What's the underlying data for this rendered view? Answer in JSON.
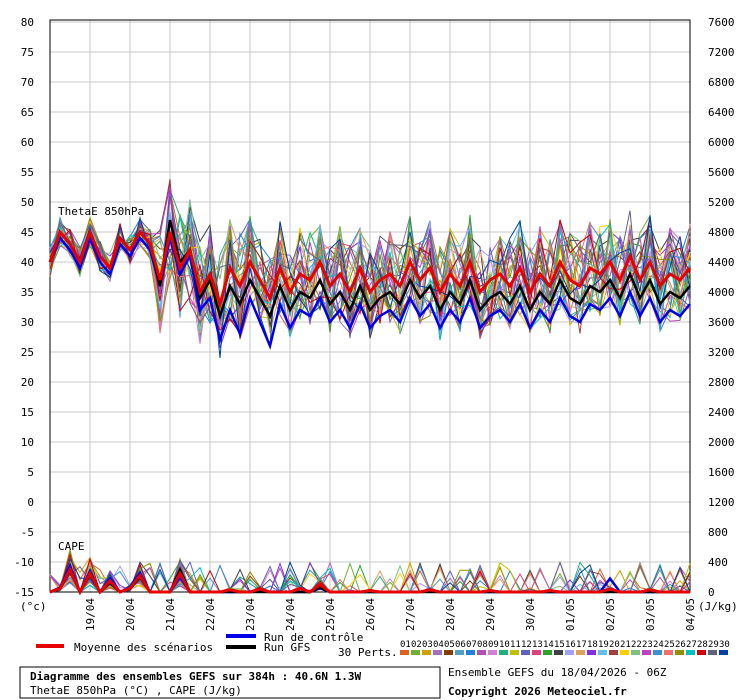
{
  "chart_data": {
    "type": "line",
    "panel_labels": {
      "theta": "ThetaE 850hPa",
      "cape": "CAPE"
    },
    "left_axis": {
      "unit": "(°c)",
      "ylim": [
        -15,
        80
      ],
      "ticks": [
        80,
        75,
        70,
        65,
        60,
        55,
        50,
        45,
        40,
        35,
        30,
        25,
        20,
        15,
        10,
        5,
        0,
        -5,
        -10,
        -15
      ]
    },
    "right_axis": {
      "unit": "(J/kg)",
      "ticks": [
        7600,
        7200,
        6800,
        6400,
        6000,
        5600,
        5200,
        4800,
        4400,
        4000,
        3600,
        3200,
        2800,
        2400,
        2000,
        1600,
        1200,
        800,
        400,
        0
      ]
    },
    "x_dates": [
      "19/04",
      "20/04",
      "21/04",
      "22/04",
      "23/04",
      "24/04",
      "25/04",
      "26/04",
      "27/04",
      "28/04",
      "29/04",
      "30/04",
      "01/05",
      "02/05",
      "03/05",
      "04/05"
    ],
    "theta_mean": [
      40,
      45,
      43,
      40,
      45,
      41,
      39,
      44,
      42,
      45,
      43,
      37,
      45,
      39,
      42,
      35,
      38,
      33,
      39,
      36,
      40,
      37,
      34,
      39,
      35,
      38,
      37,
      40,
      36,
      38,
      35,
      39,
      35,
      37,
      38,
      36,
      40,
      37,
      39,
      35,
      38,
      36,
      40,
      35,
      37,
      38,
      36,
      39,
      35,
      38,
      36,
      40,
      37,
      36,
      39,
      38,
      40,
      37,
      41,
      37,
      40,
      36,
      38,
      37,
      39
    ],
    "theta_control": [
      40,
      44,
      42,
      39,
      44,
      40,
      38,
      43,
      41,
      44,
      42,
      36,
      44,
      38,
      41,
      32,
      34,
      27,
      32,
      28,
      34,
      30,
      26,
      33,
      29,
      32,
      31,
      34,
      30,
      32,
      29,
      33,
      29,
      31,
      32,
      30,
      34,
      31,
      33,
      29,
      32,
      30,
      34,
      29,
      31,
      32,
      30,
      33,
      29,
      32,
      30,
      34,
      31,
      30,
      33,
      32,
      34,
      31,
      35,
      31,
      34,
      30,
      32,
      31,
      33
    ],
    "theta_gfs": [
      40,
      45,
      43,
      40,
      45,
      41,
      39,
      44,
      42,
      45,
      43,
      36,
      47,
      40,
      42,
      34,
      37,
      31,
      36,
      33,
      37,
      34,
      31,
      36,
      32,
      35,
      34,
      37,
      33,
      35,
      32,
      36,
      32,
      34,
      35,
      33,
      37,
      34,
      36,
      32,
      35,
      33,
      37,
      32,
      34,
      35,
      33,
      36,
      32,
      35,
      33,
      37,
      34,
      33,
      36,
      35,
      37,
      34,
      38,
      34,
      37,
      33,
      35,
      34,
      36
    ],
    "cape_mean": [
      0,
      50,
      300,
      0,
      250,
      0,
      150,
      0,
      50,
      220,
      0,
      0,
      0,
      250,
      0,
      0,
      0,
      0,
      30,
      0,
      0,
      40,
      0,
      0,
      0,
      50,
      0,
      100,
      0,
      0,
      0,
      0,
      20,
      0,
      0,
      0,
      0,
      0,
      30,
      0,
      0,
      0,
      0,
      0,
      20,
      0,
      0,
      0,
      0,
      0,
      20,
      0,
      0,
      0,
      0,
      0,
      40,
      0,
      0,
      0,
      30,
      0,
      0,
      0,
      0
    ],
    "cape_control": [
      0,
      60,
      350,
      0,
      280,
      0,
      180,
      0,
      60,
      250,
      0,
      0,
      0,
      200,
      0,
      0,
      0,
      0,
      0,
      0,
      0,
      20,
      0,
      0,
      0,
      0,
      0,
      50,
      0,
      0,
      0,
      0,
      0,
      0,
      0,
      0,
      0,
      0,
      20,
      0,
      0,
      0,
      0,
      0,
      0,
      0,
      0,
      0,
      0,
      0,
      0,
      0,
      0,
      0,
      0,
      0,
      180,
      0,
      0,
      0,
      0,
      0,
      0,
      0,
      0
    ],
    "cape_gfs": [
      0,
      40,
      280,
      0,
      230,
      0,
      120,
      0,
      40,
      200,
      0,
      0,
      0,
      300,
      0,
      0,
      0,
      0,
      0,
      0,
      0,
      0,
      0,
      0,
      0,
      0,
      0,
      60,
      0,
      0,
      0,
      0,
      0,
      0,
      0,
      0,
      0,
      0,
      0,
      0,
      0,
      0,
      0,
      0,
      0,
      0,
      0,
      0,
      0,
      0,
      0,
      0,
      0,
      0,
      0,
      0,
      0,
      0,
      0,
      0,
      0,
      0,
      0,
      0,
      0
    ],
    "legend": {
      "mean": "Moyenne des scénarios",
      "control": "Run de contrôle",
      "gfs": "Run GFS",
      "perts": "30 Perts.",
      "pert_numbers": [
        "01",
        "02",
        "03",
        "04",
        "05",
        "06",
        "07",
        "08",
        "09",
        "10",
        "11",
        "12",
        "13",
        "14",
        "15",
        "16",
        "17",
        "18",
        "19",
        "20",
        "21",
        "22",
        "23",
        "24",
        "25",
        "26",
        "27",
        "28",
        "29",
        "30"
      ]
    },
    "colors": {
      "mean": "#e80000",
      "control": "#0000e8",
      "gfs": "#000000",
      "grid": "#c8c8c8",
      "perts": [
        "#e06020",
        "#70b030",
        "#d0a000",
        "#a070c0",
        "#804000",
        "#50a0c0",
        "#2080e0",
        "#b050b0",
        "#d080d0",
        "#20b080",
        "#c0c000",
        "#6060c0",
        "#e04080",
        "#30a030",
        "#404040",
        "#a0a0ff",
        "#e0a060",
        "#8030e0",
        "#60c0f0",
        "#a04040",
        "#ffd000",
        "#80c080",
        "#c040c0",
        "#4090d0",
        "#f07070",
        "#909000",
        "#00c0c0",
        "#d00000",
        "#606080",
        "#0040a0"
      ]
    }
  },
  "footer": {
    "title_line1": "Diagramme des ensembles GEFS sur 384h : 40.6N 1.3W",
    "title_line2": "ThetaE 850hPa (°C) , CAPE (J/kg)",
    "run_info": "Ensemble GEFS du 18/04/2026 - 06Z",
    "copyright": "Copyright 2026 Meteociel.fr"
  }
}
